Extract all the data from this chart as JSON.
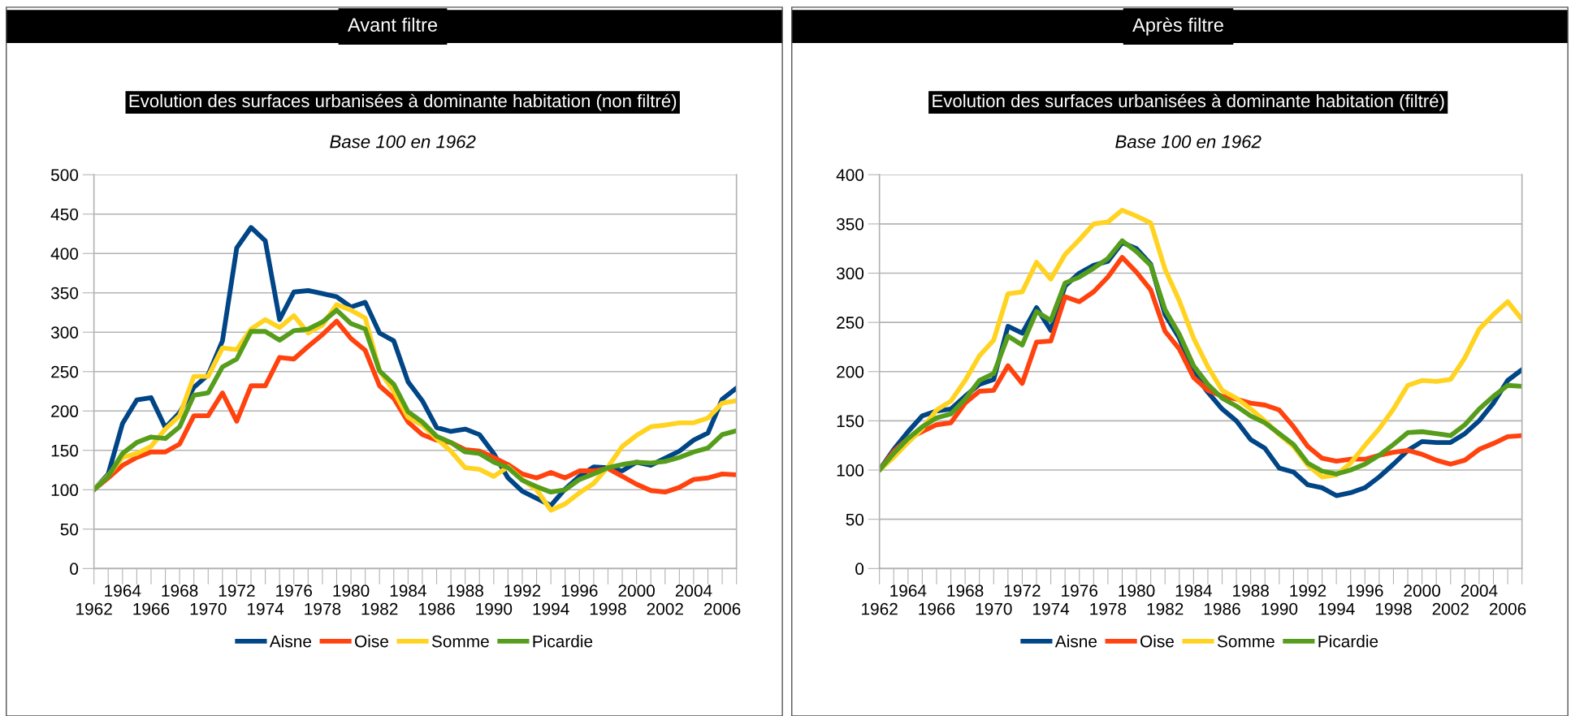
{
  "chart_data": [
    {
      "type": "line",
      "annotations": [
        "Avant filtre"
      ],
      "title": "Evolution des surfaces urbanisées à dominante habitation (non filtré)",
      "subtitle": "Base 100 en 1962",
      "categories": [
        "1962",
        null,
        "1964",
        null,
        "1966",
        null,
        "1968",
        null,
        "1970",
        null,
        "1972",
        null,
        "1974",
        null,
        "1976",
        null,
        "1978",
        null,
        "1980",
        null,
        "1982",
        null,
        "1984",
        null,
        "1986",
        null,
        "1988",
        null,
        "1990",
        null,
        "1992",
        null,
        "1994",
        null,
        "1996",
        null,
        "1998",
        null,
        "2000",
        null,
        "2002",
        null,
        "2004",
        null,
        "2006",
        null
      ],
      "series": [
        {
          "name": "Aisne",
          "color": "#004586",
          "values": [
            100,
            120,
            184,
            214,
            217,
            179,
            198,
            230,
            246,
            289,
            407,
            433,
            416,
            316,
            351,
            353,
            349,
            345,
            332,
            338,
            299,
            289,
            237,
            213,
            179,
            174,
            177,
            170,
            146,
            115,
            98,
            89,
            80,
            101,
            117,
            129,
            128,
            124,
            135,
            131,
            140,
            149,
            163,
            172,
            215,
            229
          ]
        },
        {
          "name": "Oise",
          "color": "#ff420e",
          "values": [
            100,
            115,
            131,
            141,
            148,
            148,
            158,
            194,
            194,
            223,
            187,
            232,
            232,
            268,
            266,
            282,
            297,
            314,
            292,
            277,
            232,
            216,
            186,
            170,
            163,
            160,
            151,
            149,
            141,
            132,
            120,
            115,
            122,
            115,
            124,
            124,
            127,
            117,
            107,
            99,
            97,
            103,
            113,
            115,
            120,
            119
          ]
        },
        {
          "name": "Somme",
          "color": "#ffd320",
          "values": [
            100,
            118,
            141,
            146,
            155,
            177,
            194,
            244,
            244,
            280,
            278,
            304,
            316,
            306,
            321,
            299,
            309,
            335,
            328,
            318,
            251,
            225,
            192,
            182,
            165,
            149,
            128,
            126,
            117,
            129,
            113,
            100,
            74,
            82,
            96,
            108,
            129,
            155,
            169,
            180,
            182,
            185,
            185,
            191,
            210,
            213
          ]
        },
        {
          "name": "Picardie",
          "color": "#579d1c",
          "values": [
            100,
            117,
            146,
            160,
            167,
            165,
            180,
            220,
            223,
            256,
            266,
            301,
            301,
            290,
            302,
            304,
            313,
            328,
            311,
            304,
            251,
            234,
            199,
            186,
            168,
            160,
            148,
            146,
            135,
            128,
            112,
            104,
            97,
            100,
            113,
            120,
            128,
            132,
            135,
            134,
            136,
            141,
            148,
            153,
            170,
            175
          ]
        }
      ],
      "ylim": [
        0,
        500
      ],
      "yticks": [
        0,
        50,
        100,
        150,
        200,
        250,
        300,
        350,
        400,
        450,
        500
      ],
      "grid": "y",
      "legend": "bottom"
    },
    {
      "type": "line",
      "annotations": [
        "Après filtre"
      ],
      "title": "Evolution des surfaces urbanisées à dominante habitation (filtré)",
      "subtitle": "Base 100 en 1962",
      "categories": [
        "1962",
        null,
        "1964",
        null,
        "1966",
        null,
        "1968",
        null,
        "1970",
        null,
        "1972",
        null,
        "1974",
        null,
        "1976",
        null,
        "1978",
        null,
        "1980",
        null,
        "1982",
        null,
        "1984",
        null,
        "1986",
        null,
        "1988",
        null,
        "1990",
        null,
        "1992",
        null,
        "1994",
        null,
        "1996",
        null,
        "1998",
        null,
        "2000",
        null,
        "2002",
        null,
        "2004",
        null,
        "2006",
        null
      ],
      "series": [
        {
          "name": "Aisne",
          "color": "#004586",
          "values": [
            100,
            121,
            139,
            155,
            160,
            162,
            175,
            187,
            192,
            246,
            239,
            265,
            242,
            287,
            300,
            308,
            312,
            331,
            325,
            309,
            258,
            234,
            199,
            179,
            162,
            150,
            131,
            122,
            102,
            98,
            85,
            82,
            74,
            77,
            82,
            93,
            106,
            120,
            129,
            128,
            128,
            137,
            150,
            168,
            191,
            202
          ]
        },
        {
          "name": "Oise",
          "color": "#ff420e",
          "values": [
            100,
            119,
            132,
            139,
            146,
            148,
            168,
            180,
            181,
            206,
            188,
            230,
            231,
            276,
            271,
            281,
            296,
            316,
            301,
            283,
            241,
            223,
            194,
            181,
            175,
            172,
            168,
            166,
            161,
            144,
            124,
            112,
            109,
            111,
            111,
            115,
            118,
            120,
            116,
            110,
            106,
            110,
            121,
            127,
            134,
            135
          ]
        },
        {
          "name": "Somme",
          "color": "#ffd320",
          "values": [
            100,
            113,
            128,
            142,
            161,
            170,
            191,
            216,
            232,
            279,
            281,
            311,
            294,
            319,
            334,
            350,
            352,
            364,
            358,
            351,
            304,
            272,
            234,
            205,
            181,
            173,
            162,
            150,
            136,
            124,
            105,
            93,
            95,
            107,
            125,
            142,
            162,
            186,
            191,
            190,
            192,
            214,
            243,
            258,
            271,
            253
          ]
        },
        {
          "name": "Picardie",
          "color": "#579d1c",
          "values": [
            100,
            117,
            132,
            144,
            153,
            157,
            172,
            191,
            198,
            236,
            227,
            261,
            252,
            290,
            296,
            305,
            315,
            333,
            322,
            308,
            263,
            238,
            206,
            187,
            173,
            165,
            155,
            148,
            137,
            126,
            107,
            99,
            96,
            100,
            106,
            115,
            126,
            138,
            139,
            137,
            135,
            146,
            162,
            175,
            186,
            185
          ]
        }
      ],
      "ylim": [
        0,
        400
      ],
      "yticks": [
        0,
        50,
        100,
        150,
        200,
        250,
        300,
        350,
        400
      ],
      "grid": "y",
      "legend": "bottom"
    }
  ]
}
